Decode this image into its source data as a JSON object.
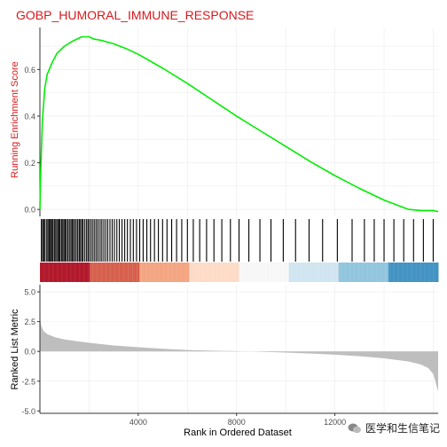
{
  "chart_data": [
    {
      "type": "line",
      "title": "GOBP_HUMORAL_IMMUNE_RESPONSE",
      "ylabel": "Running Enrichment Score",
      "xlim": [
        0,
        16200
      ],
      "ylim": [
        -0.03,
        0.78
      ],
      "yticks": [
        0.0,
        0.2,
        0.4,
        0.6
      ],
      "color": "#00ee00",
      "series": [
        {
          "x": [
            0,
            30,
            100,
            200,
            300,
            500,
            700,
            1000,
            1300,
            1500,
            1700,
            2000,
            2200,
            2500,
            3000,
            3500,
            4000,
            5000,
            6000,
            7000,
            8000,
            9000,
            10000,
            11000,
            12000,
            13000,
            14000,
            15000,
            15500,
            16000,
            16200
          ],
          "y": [
            0.0,
            0.15,
            0.38,
            0.52,
            0.58,
            0.63,
            0.67,
            0.7,
            0.72,
            0.73,
            0.74,
            0.74,
            0.73,
            0.725,
            0.71,
            0.69,
            0.665,
            0.605,
            0.54,
            0.47,
            0.4,
            0.335,
            0.27,
            0.205,
            0.145,
            0.09,
            0.04,
            0.0,
            -0.005,
            -0.005,
            -0.01
          ]
        }
      ],
      "grid": true
    },
    {
      "type": "barcode",
      "description_hits": "gene set hit positions along ranked list",
      "hits": [
        60,
        110,
        160,
        210,
        280,
        330,
        380,
        430,
        470,
        520,
        580,
        620,
        680,
        730,
        780,
        820,
        880,
        930,
        980,
        1030,
        1080,
        1140,
        1200,
        1260,
        1310,
        1360,
        1420,
        1480,
        1540,
        1600,
        1650,
        1710,
        1760,
        1830,
        1900,
        1960,
        2020,
        2090,
        2160,
        2230,
        2300,
        2370,
        2450,
        2520,
        2600,
        2680,
        2760,
        2850,
        2940,
        3030,
        3130,
        3230,
        3340,
        3450,
        3560,
        3680,
        3800,
        3930,
        4060,
        4200,
        4350,
        4500,
        4660,
        4820,
        4990,
        5170,
        5360,
        5560,
        5770,
        6000,
        6240,
        6500,
        6780,
        7080,
        7400,
        7750,
        8100,
        8500,
        8950,
        9400,
        9900,
        10400,
        10950,
        11500,
        12100,
        12700,
        13200,
        13600,
        14000,
        14400,
        14800,
        15200,
        15600,
        16000
      ],
      "heat_colors": [
        "#b2182b",
        "#d6604d",
        "#f4a582",
        "#fddbc7",
        "#f7f7f7",
        "#d1e5f0",
        "#92c5de",
        "#4393c3"
      ]
    },
    {
      "type": "area",
      "ylabel": "Ranked List Metric",
      "xlabel": "Rank in Ordered Dataset",
      "xlim": [
        0,
        16200
      ],
      "ylim": [
        -5.2,
        5.6
      ],
      "yticks": [
        5.0,
        2.5,
        0.0,
        -2.5,
        -5.0
      ],
      "xticks": [
        4000,
        8000,
        12000
      ],
      "xtick_labels": [
        "4000",
        "8000",
        "12000"
      ],
      "fill": "#bebebe",
      "series": [
        {
          "x": [
            0,
            20,
            60,
            150,
            300,
            600,
            1000,
            1500,
            2000,
            3000,
            4000,
            5000,
            6000,
            7000,
            8000,
            8500,
            9000,
            10000,
            11000,
            12000,
            13000,
            14000,
            15000,
            15500,
            15800,
            16000,
            16100,
            16200
          ],
          "y": [
            4.6,
            2.6,
            2.1,
            1.7,
            1.45,
            1.2,
            1.0,
            0.85,
            0.72,
            0.5,
            0.35,
            0.22,
            0.12,
            0.06,
            0.02,
            0.0,
            -0.03,
            -0.1,
            -0.18,
            -0.28,
            -0.4,
            -0.58,
            -0.85,
            -1.1,
            -1.4,
            -1.9,
            -2.6,
            -3.4
          ]
        }
      ],
      "grid": true
    }
  ],
  "labels": {
    "title": "GOBP_HUMORAL_IMMUNE_RESPONSE",
    "ylab_top": "Running Enrichment Score",
    "ylab_bottom": "Ranked List Metric",
    "xlab": "Rank in Ordered Dataset",
    "watermark": "医学和生信笔记"
  }
}
